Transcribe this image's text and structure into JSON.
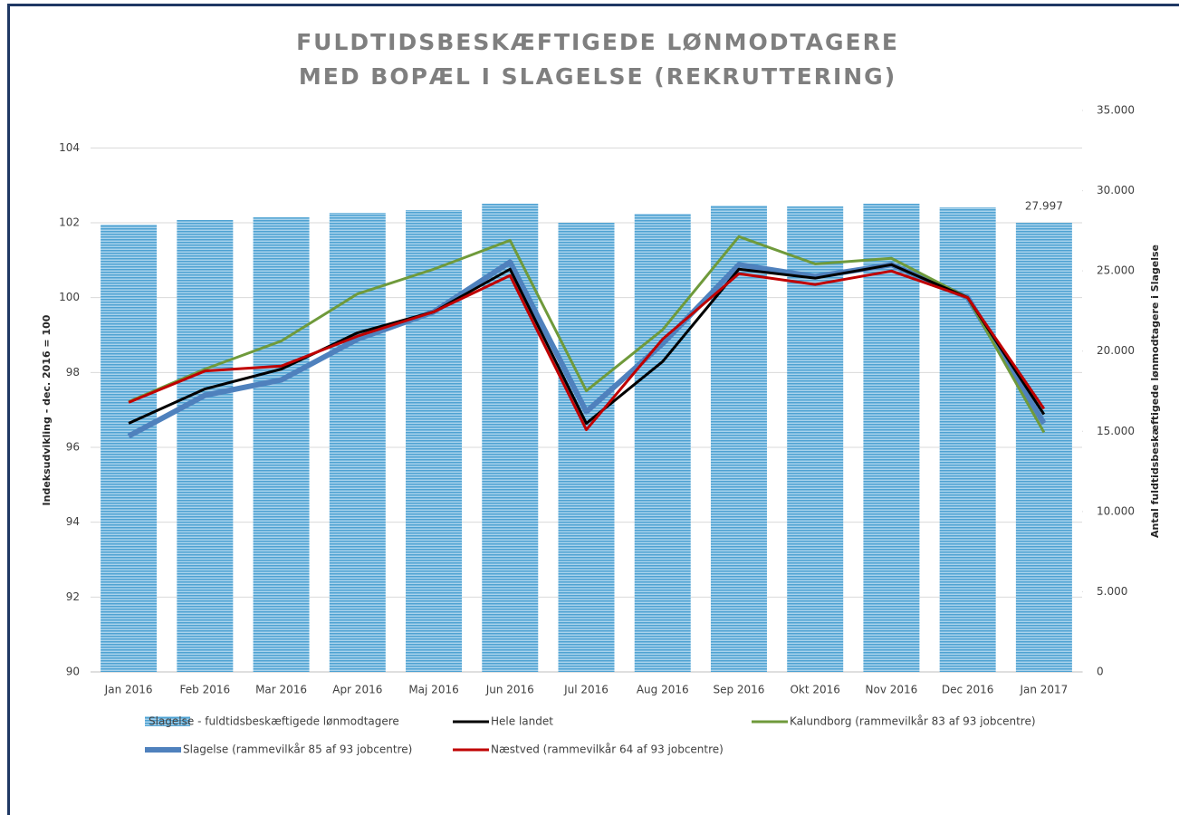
{
  "chart_data": {
    "type": "combo",
    "title": [
      "FULDTIDSBESKÆFTIGEDE LØNMODTAGERE",
      "MED BOPÆL I SLAGELSE (REKRUTTERING)"
    ],
    "ylabel": "Indeksudvikling - dec. 2016 = 100",
    "y2label": "Antal fuldtidsbeskæftigede lønmodtagere i Slagelse",
    "categories": [
      "Jan 2016",
      "Feb 2016",
      "Mar 2016",
      "Apr 2016",
      "Maj 2016",
      "Jun 2016",
      "Jul 2016",
      "Aug 2016",
      "Sep 2016",
      "Okt 2016",
      "Nov 2016",
      "Dec 2016",
      "Jan 2017"
    ],
    "ylim": [
      90,
      105
    ],
    "yticks": [
      90,
      92,
      94,
      96,
      98,
      100,
      102,
      104
    ],
    "y2lim": [
      0,
      35000
    ],
    "y2ticks": [
      {
        "value": 0,
        "label": "0"
      },
      {
        "value": 5000,
        "label": "5.000"
      },
      {
        "value": 10000,
        "label": "10.000"
      },
      {
        "value": 15000,
        "label": "15.000"
      },
      {
        "value": 20000,
        "label": "20.000"
      },
      {
        "value": 25000,
        "label": "25.000"
      },
      {
        "value": 30000,
        "label": "30.000"
      },
      {
        "value": 35000,
        "label": "35.000"
      }
    ],
    "grid": true,
    "legend": "bottom",
    "series": [
      {
        "name": "Slagelse - fuldtidsbeskæftigede lønmodtagere",
        "type": "bar",
        "axis": "y2",
        "color": "#5ba8d4",
        "values": [
          27890,
          28170,
          28340,
          28620,
          28790,
          29190,
          28000,
          28560,
          29070,
          29020,
          29190,
          28960,
          27997
        ],
        "value_labels": [
          null,
          null,
          null,
          null,
          null,
          null,
          null,
          null,
          null,
          null,
          null,
          null,
          "27.997"
        ]
      },
      {
        "name": "Hele landet",
        "type": "line",
        "color": "#000000",
        "width": 3,
        "values": [
          96.64,
          97.56,
          98.09,
          99.06,
          99.62,
          100.76,
          96.64,
          98.29,
          100.76,
          100.52,
          100.88,
          100,
          96.88
        ]
      },
      {
        "name": "Kalundborg (rammevilkår 83 af 93 jobcentre)",
        "type": "line",
        "color": "#6f9a3b",
        "width": 3,
        "values": [
          97.22,
          98.09,
          98.84,
          100.1,
          100.76,
          101.53,
          97.51,
          99.14,
          101.63,
          100.9,
          101.05,
          100,
          96.4
        ]
      },
      {
        "name": "Slagelse (rammevilkår 85 af 93 jobcentre)",
        "type": "line",
        "color": "#4f81bd",
        "width": 6,
        "values": [
          96.3,
          97.39,
          97.8,
          98.89,
          99.62,
          100.95,
          96.95,
          98.77,
          100.88,
          100.56,
          100.88,
          100,
          96.64
        ]
      },
      {
        "name": "Næstved (rammevilkår 64 af 93 jobcentre)",
        "type": "line",
        "color": "#c00000",
        "width": 3,
        "values": [
          97.2,
          98.04,
          98.17,
          98.97,
          99.62,
          100.59,
          96.47,
          98.89,
          100.64,
          100.35,
          100.71,
          100,
          97.03
        ]
      }
    ]
  }
}
